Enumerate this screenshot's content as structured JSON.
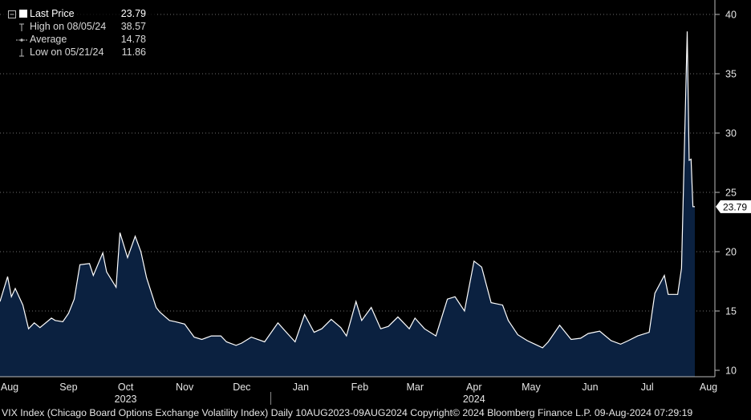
{
  "legend": {
    "last_label": "Last Price",
    "last_value": "23.79",
    "high_label": "High on 08/05/24",
    "high_value": "38.57",
    "avg_label": "Average",
    "avg_value": "14.78",
    "low_label": "Low on 05/21/24",
    "low_value": "11.86"
  },
  "footer": "VIX Index (Chicago Board Options Exchange Volatility Index)  Daily 10AUG2023-09AUG2024  Copyright© 2024 Bloomberg Finance L.P.  09-Aug-2024 07:29:19",
  "colors": {
    "background": "#000000",
    "line": "#ffffff",
    "area": "#0b2140",
    "grid": "#6e6e6e"
  },
  "chart_data": {
    "type": "area",
    "ylim": [
      9.5,
      41
    ],
    "yticks": [
      10,
      15,
      20,
      25,
      30,
      35,
      40
    ],
    "grid": true,
    "legend_position": "top-left",
    "last_price_tag": "23.79",
    "month_labels": [
      "Aug",
      "Sep",
      "Oct",
      "Nov",
      "Dec",
      "Jan",
      "Feb",
      "Mar",
      "Apr",
      "May",
      "Jun",
      "Jul",
      "Aug"
    ],
    "year_labels": [
      "2023",
      "2024"
    ],
    "x": [
      "2023-08-10",
      "2023-08-14",
      "2023-08-16",
      "2023-08-18",
      "2023-08-22",
      "2023-08-25",
      "2023-08-28",
      "2023-08-31",
      "2023-09-06",
      "2023-09-08",
      "2023-09-12",
      "2023-09-15",
      "2023-09-18",
      "2023-09-21",
      "2023-09-26",
      "2023-09-28",
      "2023-10-03",
      "2023-10-05",
      "2023-10-10",
      "2023-10-12",
      "2023-10-16",
      "2023-10-20",
      "2023-10-23",
      "2023-10-26",
      "2023-10-31",
      "2023-11-02",
      "2023-11-07",
      "2023-11-10",
      "2023-11-15",
      "2023-11-20",
      "2023-11-24",
      "2023-11-29",
      "2023-12-04",
      "2023-12-07",
      "2023-12-12",
      "2023-12-15",
      "2023-12-20",
      "2023-12-27",
      "2024-01-03",
      "2024-01-08",
      "2024-01-12",
      "2024-01-17",
      "2024-01-22",
      "2024-01-26",
      "2024-01-31",
      "2024-02-05",
      "2024-02-08",
      "2024-02-13",
      "2024-02-16",
      "2024-02-21",
      "2024-02-26",
      "2024-03-01",
      "2024-03-06",
      "2024-03-12",
      "2024-03-15",
      "2024-03-20",
      "2024-03-26",
      "2024-04-01",
      "2024-04-05",
      "2024-04-10",
      "2024-04-15",
      "2024-04-19",
      "2024-04-24",
      "2024-04-30",
      "2024-05-03",
      "2024-05-08",
      "2024-05-13",
      "2024-05-17",
      "2024-05-21",
      "2024-05-24",
      "2024-05-30",
      "2024-06-05",
      "2024-06-10",
      "2024-06-14",
      "2024-06-20",
      "2024-06-26",
      "2024-07-01",
      "2024-07-05",
      "2024-07-10",
      "2024-07-16",
      "2024-07-19",
      "2024-07-24",
      "2024-07-26",
      "2024-07-31",
      "2024-08-02",
      "2024-08-05",
      "2024-08-06",
      "2024-08-07",
      "2024-08-08",
      "2024-08-09"
    ],
    "series": [
      {
        "values": [
          15.8,
          17.9,
          16.2,
          16.9,
          15.5,
          13.5,
          14.0,
          13.6,
          14.4,
          14.2,
          14.1,
          14.8,
          16.0,
          18.9,
          19.0,
          18.0,
          19.9,
          18.3,
          17.0,
          21.6,
          19.5,
          21.3,
          20.0,
          17.8,
          15.3,
          14.9,
          14.2,
          14.1,
          13.9,
          12.8,
          12.6,
          12.9,
          12.9,
          12.4,
          12.1,
          12.3,
          12.8,
          12.4,
          14.0,
          13.1,
          12.4,
          14.7,
          13.2,
          13.5,
          14.3,
          13.6,
          12.9,
          15.8,
          14.2,
          15.3,
          13.5,
          13.7,
          14.5,
          13.5,
          14.4,
          13.5,
          12.9,
          16.0,
          16.2,
          15.0,
          19.2,
          18.7,
          15.7,
          15.5,
          14.2,
          13.0,
          12.5,
          12.2,
          11.9,
          12.4,
          13.8,
          12.6,
          12.7,
          13.1,
          13.3,
          12.5,
          12.2,
          12.5,
          12.9,
          13.2,
          16.5,
          18.0,
          16.4,
          16.4,
          18.6,
          38.57,
          27.7,
          27.8,
          23.8,
          23.79
        ]
      }
    ]
  }
}
